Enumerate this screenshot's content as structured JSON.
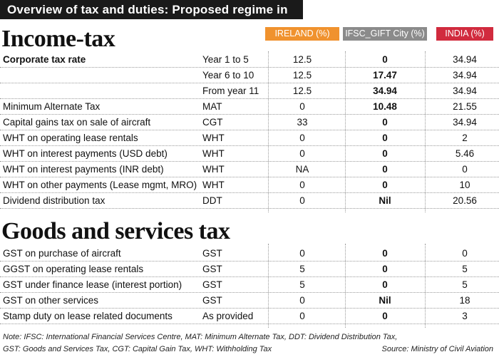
{
  "title": "Overview of tax and duties: Proposed regime in IFSC",
  "columns": {
    "ireland": "IRELAND (%)",
    "ifsc": "IFSC_GIFT City (%)",
    "india": "INDIA (%)"
  },
  "sections": {
    "income_tax": {
      "heading": "Income-tax",
      "rows": [
        {
          "label": "Corporate tax rate",
          "code": "Year 1 to 5",
          "ireland": "12.5",
          "ifsc": "0",
          "india": "34.94"
        },
        {
          "label": "",
          "code": "Year 6 to 10",
          "ireland": "12.5",
          "ifsc": "17.47",
          "india": "34.94"
        },
        {
          "label": "",
          "code": "From year 11",
          "ireland": "12.5",
          "ifsc": "34.94",
          "india": "34.94"
        },
        {
          "label": "Minimum Alternate Tax",
          "code": "MAT",
          "ireland": "0",
          "ifsc": "10.48",
          "india": "21.55"
        },
        {
          "label": "Capital gains tax on sale of aircraft",
          "code": "CGT",
          "ireland": "33",
          "ifsc": "0",
          "india": "34.94"
        },
        {
          "label": "WHT on operating lease rentals",
          "code": "WHT",
          "ireland": "0",
          "ifsc": "0",
          "india": "2"
        },
        {
          "label": "WHT on interest payments (USD debt)",
          "code": "WHT",
          "ireland": "0",
          "ifsc": "0",
          "india": "5.46"
        },
        {
          "label": "WHT on interest payments (INR debt)",
          "code": "WHT",
          "ireland": "NA",
          "ifsc": "0",
          "india": "0"
        },
        {
          "label": "WHT on other payments (Lease mgmt, MRO)",
          "code": "WHT",
          "ireland": "0",
          "ifsc": "0",
          "india": "10"
        },
        {
          "label": "Dividend distribution tax",
          "code": "DDT",
          "ireland": "0",
          "ifsc": "Nil",
          "india": "20.56"
        }
      ]
    },
    "gst": {
      "heading": "Goods and services tax",
      "rows": [
        {
          "label": "GST on purchase of aircraft",
          "code": "GST",
          "ireland": "0",
          "ifsc": "0",
          "india": "0"
        },
        {
          "label": "GGST on operating lease rentals",
          "code": "GST",
          "ireland": "5",
          "ifsc": "0",
          "india": "5"
        },
        {
          "label": "GST under finance  lease (interest portion)",
          "code": "GST",
          "ireland": "5",
          "ifsc": "0",
          "india": "5"
        },
        {
          "label": "GST on other services",
          "code": "GST",
          "ireland": "0",
          "ifsc": "Nil",
          "india": "18"
        },
        {
          "label": "Stamp duty on lease related documents",
          "code": "As provided",
          "ireland": "0",
          "ifsc": "0",
          "india": "3"
        }
      ]
    }
  },
  "note_line1": "Note: IFSC: International Financial Services Centre, MAT: Minimum Alternate Tax, DDT: Dividend Distribution Tax,",
  "note_line2": "GST: Goods and Services Tax, CGT: Capital Gain Tax, WHT: Withholding Tax",
  "source": "Source: Ministry of Civil Aviation"
}
